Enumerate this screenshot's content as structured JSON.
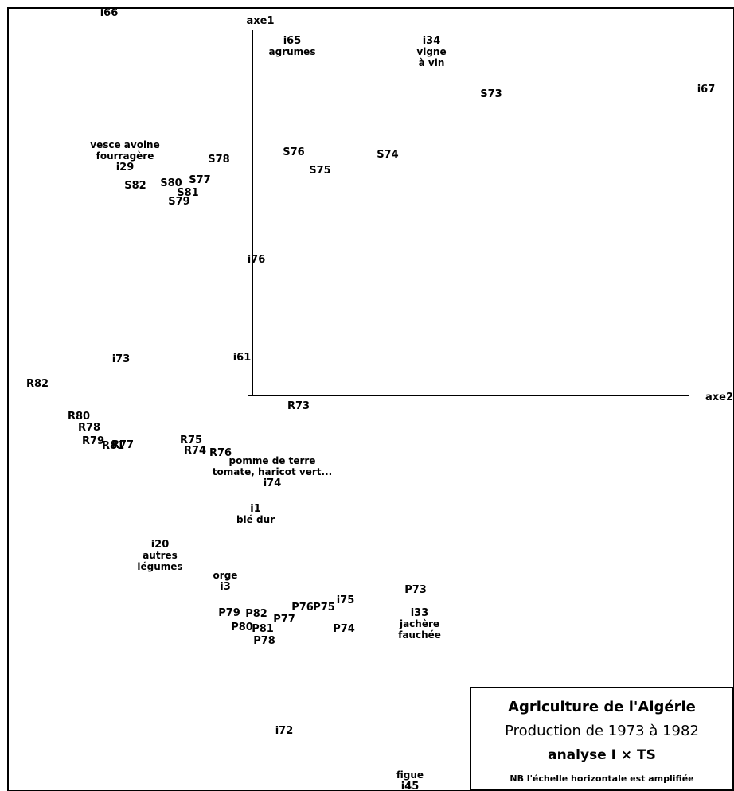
{
  "chart_data": {
    "type": "scatter",
    "axes": {
      "vertical": "axe1",
      "horizontal": "axe2"
    },
    "grid": false,
    "legend_placement": "bottom-right",
    "legend": {
      "title": "Agriculture de l'Algérie",
      "subtitle": "Production de 1973 à 1982",
      "analysis": "analyse  I  ×  TS",
      "note": "NB l'échelle horizontale est amplifiée"
    },
    "points": [
      {
        "label": "i66",
        "x": -0.18,
        "y": 0.482
      },
      {
        "label": "i65",
        "x": 0.05,
        "y": 0.447,
        "caption": [
          "agrumes"
        ]
      },
      {
        "label": "i34",
        "x": 0.225,
        "y": 0.447,
        "caption": [
          "vigne",
          "à vin"
        ]
      },
      {
        "label": "S73",
        "x": 0.3,
        "y": 0.38
      },
      {
        "label": "i67",
        "x": 0.57,
        "y": 0.386
      },
      {
        "label": "i29",
        "x": -0.16,
        "y": 0.288,
        "caption_above": [
          "vesce avoine",
          "fourragère"
        ]
      },
      {
        "label": "S78",
        "x": -0.042,
        "y": 0.298
      },
      {
        "label": "S76",
        "x": 0.052,
        "y": 0.307
      },
      {
        "label": "S74",
        "x": 0.17,
        "y": 0.304
      },
      {
        "label": "S75",
        "x": 0.085,
        "y": 0.284
      },
      {
        "label": "S77",
        "x": -0.066,
        "y": 0.272
      },
      {
        "label": "S82",
        "x": -0.147,
        "y": 0.265
      },
      {
        "label": "S80",
        "x": -0.102,
        "y": 0.268
      },
      {
        "label": "S81",
        "x": -0.081,
        "y": 0.256
      },
      {
        "label": "S79",
        "x": -0.092,
        "y": 0.245
      },
      {
        "label": "i76",
        "x": 0.005,
        "y": 0.172
      },
      {
        "label": "i73",
        "x": -0.165,
        "y": 0.047
      },
      {
        "label": "i61",
        "x": -0.013,
        "y": 0.049
      },
      {
        "label": "R82",
        "x": -0.27,
        "y": 0.016
      },
      {
        "label": "R73",
        "x": 0.058,
        "y": -0.012
      },
      {
        "label": "R80",
        "x": -0.218,
        "y": -0.025
      },
      {
        "label": "R78",
        "x": -0.205,
        "y": -0.039
      },
      {
        "label": "R79",
        "x": -0.2,
        "y": -0.056
      },
      {
        "label": "R81",
        "x": -0.175,
        "y": -0.062
      },
      {
        "label": "R77",
        "x": -0.163,
        "y": -0.061
      },
      {
        "label": "R75",
        "x": -0.077,
        "y": -0.055
      },
      {
        "label": "R74",
        "x": -0.072,
        "y": -0.068
      },
      {
        "label": "R76",
        "x": -0.04,
        "y": -0.071
      },
      {
        "label": "i74",
        "x": 0.025,
        "y": -0.109,
        "caption_above": [
          "pomme de terre",
          "tomate, haricot vert..."
        ]
      },
      {
        "label": "i1",
        "x": 0.004,
        "y": -0.141,
        "caption": [
          "blé dur"
        ]
      },
      {
        "label": "i20",
        "x": -0.116,
        "y": -0.186,
        "caption": [
          "autres",
          "légumes"
        ]
      },
      {
        "label": "i3",
        "x": -0.034,
        "y": -0.239,
        "caption_above": [
          "orge"
        ]
      },
      {
        "label": "P73",
        "x": 0.205,
        "y": -0.243
      },
      {
        "label": "i75",
        "x": 0.117,
        "y": -0.256
      },
      {
        "label": "P76",
        "x": 0.063,
        "y": -0.265
      },
      {
        "label": "P75",
        "x": 0.09,
        "y": -0.265
      },
      {
        "label": "P82",
        "x": 0.005,
        "y": -0.273
      },
      {
        "label": "P79",
        "x": -0.029,
        "y": -0.272
      },
      {
        "label": "P77",
        "x": 0.04,
        "y": -0.28
      },
      {
        "label": "P80",
        "x": -0.013,
        "y": -0.29
      },
      {
        "label": "P81",
        "x": 0.013,
        "y": -0.292
      },
      {
        "label": "P78",
        "x": 0.015,
        "y": -0.307
      },
      {
        "label": "P74",
        "x": 0.115,
        "y": -0.292
      },
      {
        "label": "i33",
        "x": 0.21,
        "y": -0.272,
        "caption": [
          "jachère",
          "fauchée"
        ]
      },
      {
        "label": "i72",
        "x": 0.04,
        "y": -0.42
      },
      {
        "label": "i45",
        "x": 0.198,
        "y": -0.49,
        "caption_above": [
          "figue"
        ]
      }
    ]
  }
}
